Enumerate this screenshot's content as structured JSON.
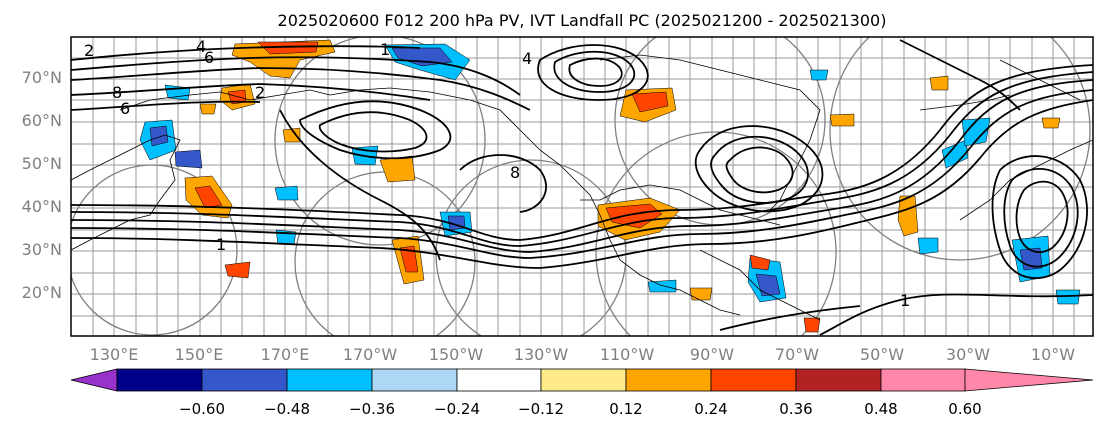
{
  "title": "2025020600 F012 200 hPa PV, IVT Landfall PC (2025021200 - 2025021300)",
  "lat_labels": [
    "70°N",
    "60°N",
    "50°N",
    "40°N",
    "30°N",
    "20°N"
  ],
  "lon_labels": [
    "130°E",
    "150°E",
    "170°E",
    "170°W",
    "150°W",
    "130°W",
    "110°W",
    "90°W",
    "70°W",
    "50°W",
    "30°W",
    "10°W"
  ],
  "contour_labels": [
    "2",
    "4",
    "6",
    "8",
    "6",
    "4",
    "1",
    "2",
    "8",
    "1",
    "1"
  ],
  "colorbar": {
    "tick_labels": [
      "−0.60",
      "−0.48",
      "−0.36",
      "−0.24",
      "−0.12",
      "0.12",
      "0.24",
      "0.36",
      "0.48",
      "0.60"
    ],
    "colors": [
      "#9932cc",
      "#00008b",
      "#3458c9",
      "#00bfff",
      "#add8f5",
      "#ffffff",
      "#ffeb8a",
      "#ffa500",
      "#ff4500",
      "#b22222",
      "#ff88aa"
    ]
  }
}
